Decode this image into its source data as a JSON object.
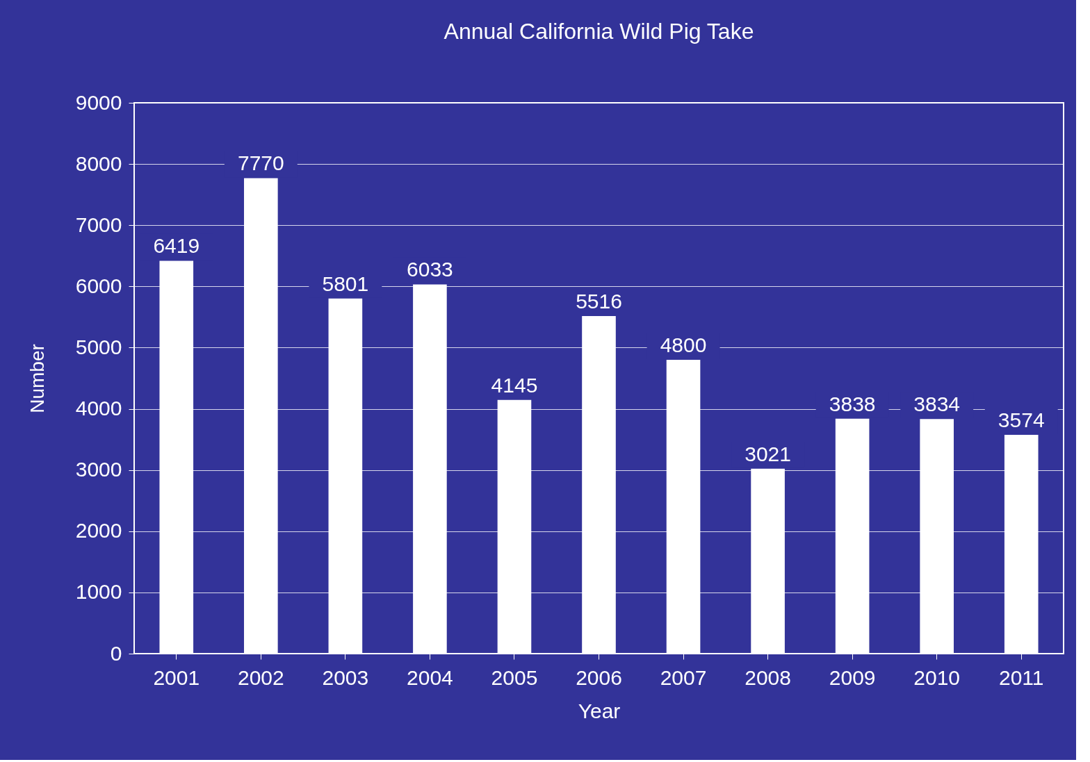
{
  "chart_data": {
    "type": "bar",
    "title": "Annual California Wild Pig Take",
    "xlabel": "Year",
    "ylabel": "Number",
    "categories": [
      "2001",
      "2002",
      "2003",
      "2004",
      "2005",
      "2006",
      "2007",
      "2008",
      "2009",
      "2010",
      "2011"
    ],
    "values": [
      6419,
      7770,
      5801,
      6033,
      4145,
      5516,
      4800,
      3021,
      3838,
      3834,
      3574
    ],
    "color": "#ffffff",
    "ylim": [
      0,
      9000
    ],
    "yticks": [
      0,
      1000,
      2000,
      3000,
      4000,
      5000,
      6000,
      7000,
      8000,
      9000
    ],
    "grid": "y",
    "data_labels": true
  }
}
